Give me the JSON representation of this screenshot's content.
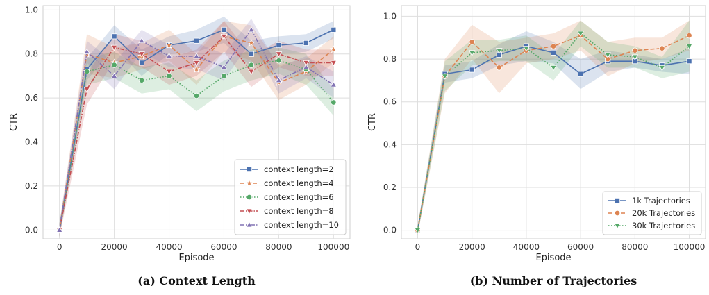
{
  "chart_data": [
    {
      "type": "line",
      "caption": "(a) Context Length",
      "xlabel": "Episode",
      "ylabel": "CTR",
      "xlim": [
        -6000,
        106000
      ],
      "ylim": [
        -0.04,
        1.02
      ],
      "xticks": [
        0,
        20000,
        40000,
        60000,
        80000,
        100000
      ],
      "yticks": [
        0.0,
        0.2,
        0.4,
        0.6,
        0.8,
        1.0
      ],
      "xtick_labels": [
        "0",
        "20000",
        "40000",
        "60000",
        "80000",
        "100000"
      ],
      "ytick_labels": [
        "0.0",
        "0.2",
        "0.4",
        "0.6",
        "0.8",
        "1.0"
      ],
      "grid": true,
      "legend_position": "bottom-right",
      "x": [
        0,
        10000,
        20000,
        30000,
        40000,
        50000,
        60000,
        70000,
        80000,
        90000,
        100000
      ],
      "series": [
        {
          "name": "context length=2",
          "color": "#4c72b0",
          "marker": "square",
          "dash": "solid",
          "values": [
            0.0,
            0.73,
            0.88,
            0.76,
            0.84,
            0.86,
            0.91,
            0.8,
            0.84,
            0.85,
            0.91
          ],
          "band": [
            0.03,
            0.05,
            0.05,
            0.06,
            0.04,
            0.05,
            0.06,
            0.06,
            0.04,
            0.04,
            0.04
          ]
        },
        {
          "name": "context length=4",
          "color": "#dd8452",
          "marker": "star",
          "dash": "dashed",
          "values": [
            0.0,
            0.8,
            0.76,
            0.79,
            0.84,
            0.73,
            0.88,
            0.85,
            0.67,
            0.72,
            0.82
          ],
          "band": [
            0.03,
            0.09,
            0.07,
            0.06,
            0.07,
            0.07,
            0.07,
            0.08,
            0.08,
            0.06,
            0.06
          ]
        },
        {
          "name": "context length=6",
          "color": "#55a868",
          "marker": "circle",
          "dash": "dotted",
          "values": [
            0.0,
            0.72,
            0.75,
            0.68,
            0.7,
            0.61,
            0.7,
            0.75,
            0.77,
            0.73,
            0.58
          ],
          "band": [
            0.03,
            0.06,
            0.06,
            0.06,
            0.06,
            0.07,
            0.07,
            0.07,
            0.06,
            0.07,
            0.06
          ]
        },
        {
          "name": "context length=8",
          "color": "#c44e52",
          "marker": "triangle-down",
          "dash": "dashdot",
          "values": [
            0.0,
            0.64,
            0.83,
            0.8,
            0.72,
            0.76,
            0.88,
            0.72,
            0.8,
            0.76,
            0.76
          ],
          "band": [
            0.03,
            0.07,
            0.06,
            0.06,
            0.06,
            0.06,
            0.07,
            0.07,
            0.06,
            0.06,
            0.06
          ]
        },
        {
          "name": "context length=10",
          "color": "#8172b3",
          "marker": "triangle-up",
          "dash": "dashdotdot",
          "values": [
            0.0,
            0.81,
            0.7,
            0.86,
            0.79,
            0.79,
            0.74,
            0.91,
            0.68,
            0.74,
            0.66
          ],
          "band": [
            0.03,
            0.05,
            0.06,
            0.05,
            0.05,
            0.06,
            0.06,
            0.05,
            0.06,
            0.05,
            0.06
          ]
        }
      ]
    },
    {
      "type": "line",
      "caption": "(b) Number of Trajectories",
      "xlabel": "Episode",
      "ylabel": "CTR",
      "xlim": [
        -6000,
        106000
      ],
      "ylim": [
        -0.04,
        1.05
      ],
      "xticks": [
        0,
        20000,
        40000,
        60000,
        80000,
        100000
      ],
      "yticks": [
        0.0,
        0.2,
        0.4,
        0.6,
        0.8,
        1.0
      ],
      "xtick_labels": [
        "0",
        "20000",
        "40000",
        "60000",
        "80000",
        "100000"
      ],
      "ytick_labels": [
        "0.0",
        "0.2",
        "0.4",
        "0.6",
        "0.8",
        "1.0"
      ],
      "grid": true,
      "legend_position": "bottom-right",
      "x": [
        0,
        10000,
        20000,
        30000,
        40000,
        50000,
        60000,
        70000,
        80000,
        90000,
        100000
      ],
      "series": [
        {
          "name": "1k Trajectories",
          "color": "#4c72b0",
          "marker": "square",
          "dash": "solid",
          "values": [
            0.0,
            0.73,
            0.75,
            0.82,
            0.86,
            0.83,
            0.73,
            0.79,
            0.79,
            0.77,
            0.79
          ],
          "band": [
            0.02,
            0.04,
            0.04,
            0.05,
            0.07,
            0.05,
            0.07,
            0.05,
            0.03,
            0.03,
            0.06
          ]
        },
        {
          "name": "20k Trajectories",
          "color": "#dd8452",
          "marker": "circle",
          "dash": "dashed",
          "values": [
            0.0,
            0.72,
            0.88,
            0.76,
            0.84,
            0.86,
            0.91,
            0.8,
            0.84,
            0.85,
            0.91
          ],
          "band": [
            0.02,
            0.08,
            0.08,
            0.12,
            0.06,
            0.06,
            0.07,
            0.08,
            0.06,
            0.05,
            0.07
          ]
        },
        {
          "name": "30k Trajectories",
          "color": "#55a868",
          "marker": "triangle-down",
          "dash": "dotted",
          "values": [
            0.0,
            0.72,
            0.83,
            0.84,
            0.85,
            0.76,
            0.92,
            0.82,
            0.81,
            0.76,
            0.86
          ],
          "band": [
            0.02,
            0.07,
            0.06,
            0.05,
            0.06,
            0.06,
            0.06,
            0.06,
            0.05,
            0.05,
            0.12
          ]
        }
      ]
    }
  ]
}
